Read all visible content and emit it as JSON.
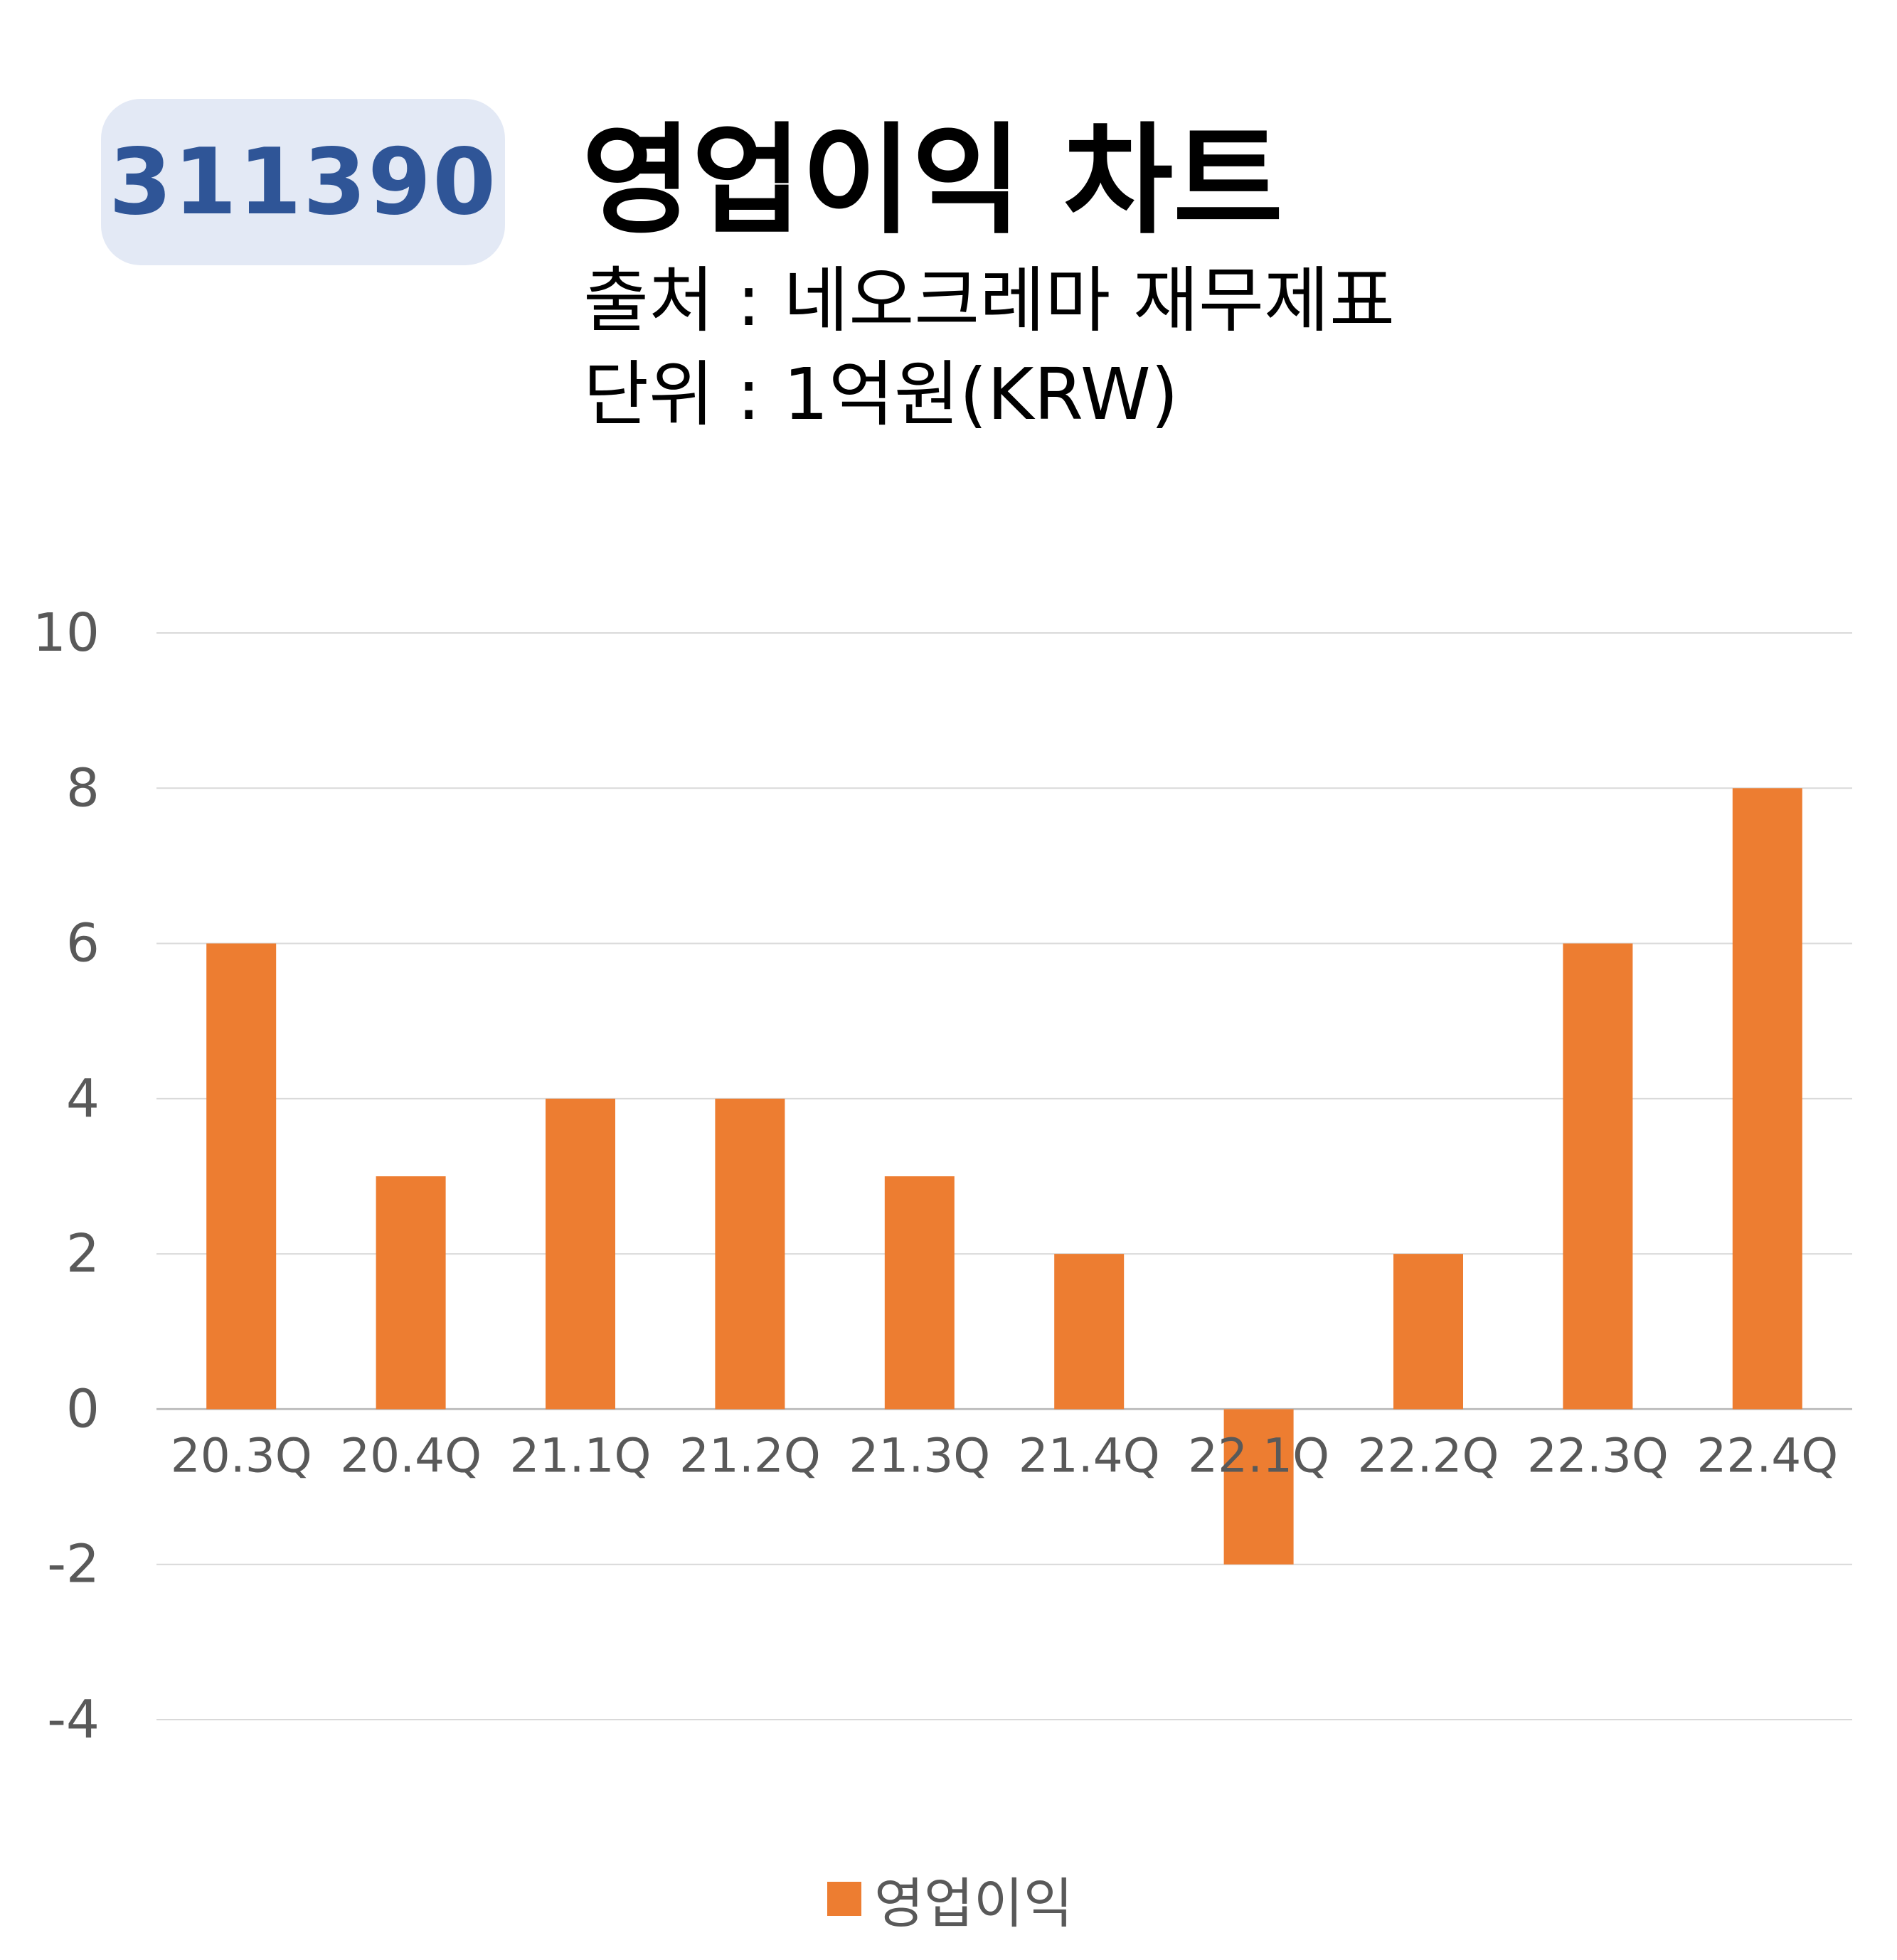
{
  "badge": {
    "code": "311390"
  },
  "header": {
    "title": "영업이익 차트",
    "source": "출처 : 네오크레마 재무제표",
    "unit": "단위 : 1억원(KRW)"
  },
  "colors": {
    "bar": "#ed7d31",
    "grid": "#d9d9d9",
    "axis_text": "#595959",
    "badge_bg": "#e3e9f5",
    "badge_text": "#2f5597"
  },
  "chart_data": {
    "type": "bar",
    "categories": [
      "20.3Q",
      "20.4Q",
      "21.1Q",
      "21.2Q",
      "21.3Q",
      "21.4Q",
      "22.1Q",
      "22.2Q",
      "22.3Q",
      "22.4Q"
    ],
    "series": [
      {
        "name": "영업이익",
        "values": [
          6,
          3,
          4,
          4,
          3,
          2,
          -2,
          2,
          6,
          8
        ]
      }
    ],
    "ylim": [
      -4,
      10
    ],
    "yticks": [
      10,
      8,
      6,
      4,
      2,
      0,
      -2,
      -4
    ],
    "grid": true,
    "legend": "bottom",
    "xlabel": "",
    "ylabel": ""
  }
}
